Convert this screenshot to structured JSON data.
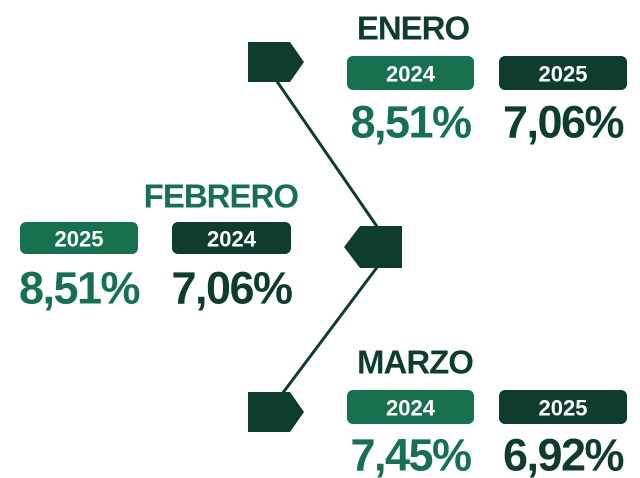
{
  "months": [
    {
      "name": "ENERO",
      "entries": [
        {
          "year": "2024",
          "value": "8,51%"
        },
        {
          "year": "2025",
          "value": "7,06%"
        }
      ]
    },
    {
      "name": "FEBRERO",
      "entries": [
        {
          "year": "2025",
          "value": "8,51%"
        },
        {
          "year": "2024",
          "value": "7,06%"
        }
      ]
    },
    {
      "name": "MARZO",
      "entries": [
        {
          "year": "2024",
          "value": "7,45%"
        },
        {
          "year": "2025",
          "value": "6,92%"
        }
      ]
    }
  ]
}
